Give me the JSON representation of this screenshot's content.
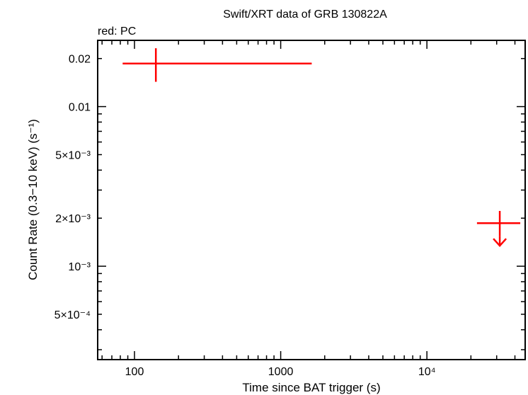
{
  "chart_data": {
    "type": "scatter",
    "title": "Swift/XRT data of GRB 130822A",
    "subtitle": "red: PC",
    "xlabel": "Time since BAT trigger (s)",
    "ylabel": "Count Rate (0.3−10 keV) (s⁻¹)",
    "xscale": "log",
    "yscale": "log",
    "xlim": [
      56,
      47000
    ],
    "ylim": [
      0.00026,
      0.026
    ],
    "x_ticks": [
      {
        "value": 100,
        "label": "100"
      },
      {
        "value": 1000,
        "label": "1000"
      },
      {
        "value": 10000,
        "label": "10⁴"
      }
    ],
    "y_ticks": [
      {
        "value": 0.02,
        "label": "0.02"
      },
      {
        "value": 0.01,
        "label": "0.01"
      },
      {
        "value": 0.005,
        "label": "5×10⁻³"
      },
      {
        "value": 0.002,
        "label": "2×10⁻³"
      },
      {
        "value": 0.001,
        "label": "10⁻³"
      },
      {
        "value": 0.0005,
        "label": "5×10⁻⁴"
      }
    ],
    "grid": false,
    "series": [
      {
        "name": "PC",
        "color": "#ff0000",
        "points": [
          {
            "x": 140,
            "xmin": 83,
            "xmax": 1630,
            "y": 0.0186,
            "ymin": 0.0143,
            "ymax": 0.0232,
            "upper_limit": false
          },
          {
            "x": 31500,
            "xmin": 22000,
            "xmax": 43500,
            "y": 0.00186,
            "ymin": 0.00155,
            "ymax": 0.00222,
            "upper_limit": true
          }
        ]
      }
    ]
  }
}
